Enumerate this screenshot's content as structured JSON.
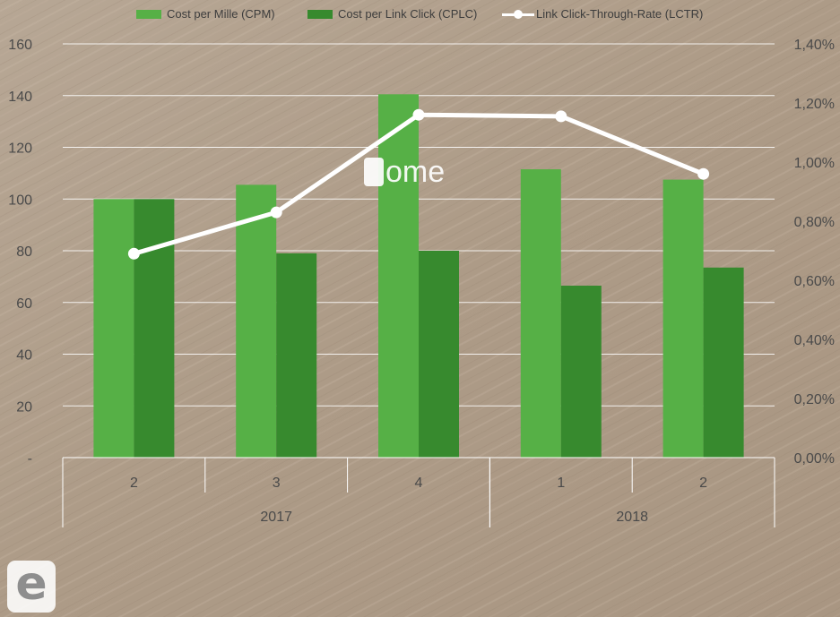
{
  "watermark": {
    "text": "ome"
  },
  "logo": {
    "letter": "e"
  },
  "chart_data": {
    "type": "bar",
    "legend_position": "top",
    "grid": true,
    "series": [
      {
        "name": "Cost per Mille (CPM)",
        "type": "bar",
        "axis": "left",
        "color": "#56b046",
        "values": [
          100,
          105.5,
          140.5,
          111.5,
          107.5
        ]
      },
      {
        "name": "Cost per Link Click (CPLC)",
        "type": "bar",
        "axis": "left",
        "color": "#378a2e",
        "values": [
          100,
          79,
          80,
          66.5,
          73.5
        ]
      },
      {
        "name": "Link Click-Through-Rate (LCTR)",
        "type": "line",
        "axis": "right",
        "color": "#ffffff",
        "values": [
          0.0069,
          0.0083,
          0.0116,
          0.01155,
          0.0096
        ]
      }
    ],
    "categories": [
      "2",
      "3",
      "4",
      "1",
      "2"
    ],
    "groups": [
      {
        "label": "2017",
        "count": 3
      },
      {
        "label": "2018",
        "count": 2
      }
    ],
    "y_left": {
      "ylim": [
        0,
        160
      ],
      "ticks": [
        "-",
        "20",
        "40",
        "60",
        "80",
        "100",
        "120",
        "140",
        "160"
      ]
    },
    "y_right": {
      "ylim": [
        0,
        0.014
      ],
      "ticks": [
        "0,00%",
        "0,20%",
        "0,40%",
        "0,60%",
        "0,80%",
        "1,00%",
        "1,20%",
        "1,40%"
      ]
    },
    "title": "",
    "xlabel": "",
    "ylabel": ""
  }
}
